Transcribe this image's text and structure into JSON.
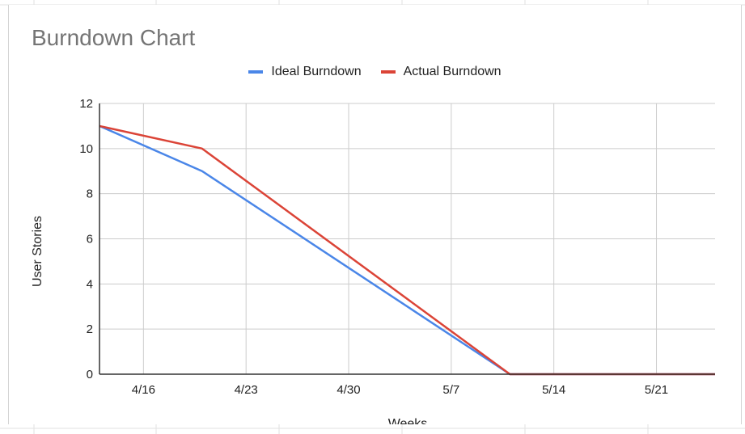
{
  "chart_data": {
    "type": "line",
    "title": "Burndown Chart",
    "xlabel": "Weeks",
    "ylabel": "User Stories",
    "x_tick_labels": [
      "4/16",
      "4/23",
      "4/30",
      "5/7",
      "5/14",
      "5/21"
    ],
    "x_tick_positions": [
      4,
      11,
      18,
      25,
      32,
      39
    ],
    "y_ticks": [
      0,
      2,
      4,
      6,
      8,
      10,
      12
    ],
    "xlim": [
      1,
      43
    ],
    "ylim": [
      0,
      12
    ],
    "grid": true,
    "legend_position": "top",
    "series": [
      {
        "name": "Ideal Burndown",
        "color": "#4a86e8",
        "x": [
          1,
          8,
          29,
          43
        ],
        "y": [
          11,
          9,
          0,
          0
        ]
      },
      {
        "name": "Actual Burndown",
        "color": "#db4437",
        "x": [
          1,
          8,
          29,
          43
        ],
        "y": [
          11,
          10,
          0,
          0
        ]
      }
    ]
  }
}
